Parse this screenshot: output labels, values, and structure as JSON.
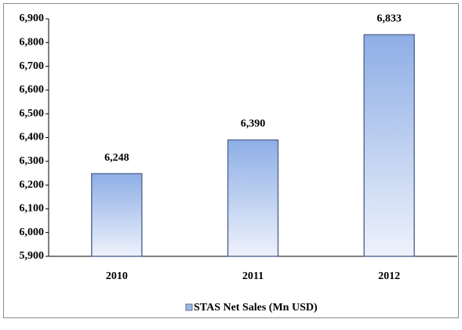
{
  "chart_data": {
    "type": "bar",
    "categories": [
      "2010",
      "2011",
      "2012"
    ],
    "series": [
      {
        "name": "STAS Net Sales (Mn USD)",
        "color": "#9db8e8",
        "values": [
          6248,
          6390,
          6833
        ],
        "value_labels": [
          "6,248",
          "6,390",
          "6,833"
        ]
      }
    ],
    "ylim": [
      5900,
      6900
    ],
    "yticks": [
      {
        "value": 5900,
        "label": "5,900"
      },
      {
        "value": 6000,
        "label": "6,000"
      },
      {
        "value": 6100,
        "label": "6,100"
      },
      {
        "value": 6200,
        "label": "6,200"
      },
      {
        "value": 6300,
        "label": "6,300"
      },
      {
        "value": 6400,
        "label": "6,400"
      },
      {
        "value": 6500,
        "label": "6,500"
      },
      {
        "value": 6600,
        "label": "6,600"
      },
      {
        "value": 6700,
        "label": "6,700"
      },
      {
        "value": 6800,
        "label": "6,800"
      },
      {
        "value": 6900,
        "label": "6,900"
      }
    ],
    "legend": "bottom",
    "grid": false
  }
}
